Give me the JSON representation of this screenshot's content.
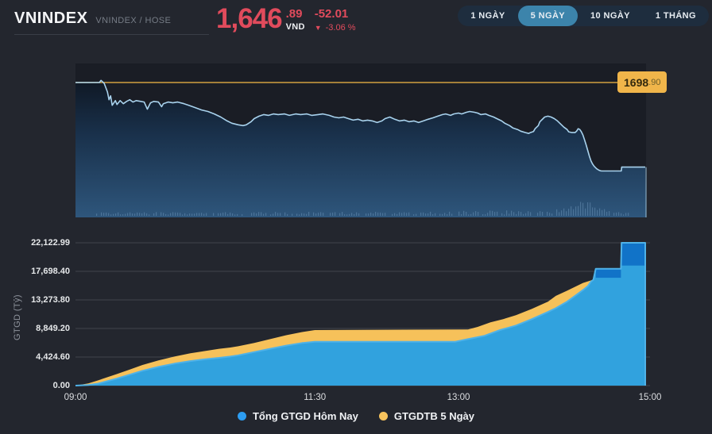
{
  "header": {
    "symbol": "VNINDEX",
    "exchange_label": "VNINDEX / HOSE",
    "price_main": "1,646",
    "price_decimals": ".89",
    "currency": "VND",
    "change": "-52.01",
    "change_arrow": "▼",
    "change_percent": "-3.06 %"
  },
  "tabs": [
    {
      "label": "1 NGÀY",
      "active": false
    },
    {
      "label": "5 NGÀY",
      "active": true
    },
    {
      "label": "10 NGÀY",
      "active": false
    },
    {
      "label": "1 THÁNG",
      "active": false
    }
  ],
  "reference_label": {
    "main": "1698",
    "decimals": ".90",
    "value": 1698.9
  },
  "legend": [
    {
      "label": "Tổng GTGD Hôm Nay",
      "color": "#2d9df2"
    },
    {
      "label": "GTGDTB 5 Ngày",
      "color": "#f7c35d"
    }
  ],
  "colors": {
    "page_bg": "#23262e",
    "plot_bg": "#1a1d25",
    "accent_red": "#e14b5c",
    "tab_bar_bg": "#1e2d3e",
    "tab_active_bg": "#3c84ab",
    "reference_yellow_line": "#d2a040",
    "reference_label_bg": "#f0b54a",
    "price_line": "#a8d2ed",
    "area_gradient_top": "#0c1018",
    "area_gradient_mid": "#19304a",
    "area_gradient_bottom": "#2e567c",
    "volume_tick": "#7fa8cc",
    "turnover_blue": "#31a2de",
    "turnover_blue_stroke": "#4fb2e8",
    "turnover_blue_dark": "#1173c8",
    "five_day_yellow": "#f6c15a",
    "grid": "#40444c"
  },
  "chart_data": [
    {
      "type": "line",
      "name": "vnindex-intraday-price",
      "x_unit": "minutes from 09:00",
      "x_range": [
        0,
        360
      ],
      "reference_line": {
        "value": 1698.9,
        "label": "1698.90"
      },
      "open_value": 1698.9,
      "last_value": 1646.89,
      "has_volume_ticks": true,
      "points": [
        [
          0,
          1698.9
        ],
        [
          15,
          1698.9
        ],
        [
          16,
          1700.2
        ],
        [
          18,
          1698.4
        ],
        [
          20,
          1693.1
        ],
        [
          21,
          1688.3
        ],
        [
          22,
          1690.7
        ],
        [
          23,
          1684.9
        ],
        [
          25,
          1687.8
        ],
        [
          26,
          1685.4
        ],
        [
          28,
          1687.8
        ],
        [
          30,
          1685.9
        ],
        [
          32,
          1687.3
        ],
        [
          34,
          1688.3
        ],
        [
          36,
          1686.9
        ],
        [
          38,
          1687.8
        ],
        [
          41,
          1687.3
        ],
        [
          43,
          1686.9
        ],
        [
          45,
          1682.5
        ],
        [
          47,
          1686.4
        ],
        [
          49,
          1687.3
        ],
        [
          52,
          1686.9
        ],
        [
          54,
          1684.0
        ],
        [
          55,
          1685.9
        ],
        [
          58,
          1686.9
        ],
        [
          61,
          1686.4
        ],
        [
          64,
          1686.9
        ],
        [
          68,
          1685.9
        ],
        [
          71,
          1684.9
        ],
        [
          75,
          1683.5
        ],
        [
          79,
          1682.0
        ],
        [
          83,
          1681.1
        ],
        [
          87,
          1679.6
        ],
        [
          91,
          1677.7
        ],
        [
          95,
          1675.3
        ],
        [
          98,
          1673.9
        ],
        [
          102,
          1672.9
        ],
        [
          105,
          1672.4
        ],
        [
          107,
          1672.9
        ],
        [
          110,
          1674.8
        ],
        [
          112,
          1676.7
        ],
        [
          115,
          1678.2
        ],
        [
          118,
          1679.2
        ],
        [
          121,
          1678.7
        ],
        [
          124,
          1679.6
        ],
        [
          127,
          1679.2
        ],
        [
          131,
          1679.6
        ],
        [
          134,
          1678.7
        ],
        [
          138,
          1679.6
        ],
        [
          141,
          1679.2
        ],
        [
          145,
          1679.6
        ],
        [
          148,
          1678.7
        ],
        [
          152,
          1679.2
        ],
        [
          155,
          1679.6
        ],
        [
          159,
          1678.7
        ],
        [
          162,
          1677.7
        ],
        [
          165,
          1677.2
        ],
        [
          168,
          1677.7
        ],
        [
          171,
          1676.7
        ],
        [
          174,
          1675.8
        ],
        [
          177,
          1676.3
        ],
        [
          180,
          1675.3
        ],
        [
          183,
          1675.8
        ],
        [
          186,
          1675.3
        ],
        [
          189,
          1674.3
        ],
        [
          192,
          1675.3
        ],
        [
          194,
          1676.7
        ],
        [
          197,
          1677.7
        ],
        [
          200,
          1676.3
        ],
        [
          203,
          1675.3
        ],
        [
          206,
          1675.8
        ],
        [
          209,
          1674.8
        ],
        [
          212,
          1675.3
        ],
        [
          215,
          1674.3
        ],
        [
          218,
          1675.3
        ],
        [
          221,
          1676.3
        ],
        [
          224,
          1677.2
        ],
        [
          227,
          1678.2
        ],
        [
          230,
          1679.2
        ],
        [
          232,
          1679.6
        ],
        [
          235,
          1678.7
        ],
        [
          237,
          1679.6
        ],
        [
          240,
          1680.1
        ],
        [
          242,
          1679.6
        ],
        [
          245,
          1680.6
        ],
        [
          247,
          1681.1
        ],
        [
          250,
          1680.6
        ],
        [
          252,
          1680.1
        ],
        [
          254,
          1679.2
        ],
        [
          257,
          1679.6
        ],
        [
          259,
          1678.7
        ],
        [
          262,
          1677.7
        ],
        [
          264,
          1676.7
        ],
        [
          267,
          1675.3
        ],
        [
          269,
          1673.9
        ],
        [
          272,
          1672.4
        ],
        [
          274,
          1671.0
        ],
        [
          277,
          1670.0
        ],
        [
          279,
          1669.0
        ],
        [
          282,
          1668.1
        ],
        [
          284,
          1667.6
        ],
        [
          285,
          1668.1
        ],
        [
          287,
          1668.8
        ],
        [
          288,
          1670.5
        ],
        [
          290,
          1672.4
        ],
        [
          291,
          1674.8
        ],
        [
          293,
          1676.7
        ],
        [
          294,
          1677.7
        ],
        [
          296,
          1678.2
        ],
        [
          298,
          1677.7
        ],
        [
          300,
          1676.7
        ],
        [
          302,
          1675.3
        ],
        [
          304,
          1673.4
        ],
        [
          306,
          1671.5
        ],
        [
          308,
          1670.0
        ],
        [
          309,
          1668.6
        ],
        [
          311,
          1668.1
        ],
        [
          313,
          1668.1
        ],
        [
          314,
          1669.0
        ],
        [
          315,
          1670.5
        ],
        [
          316,
          1670.0
        ],
        [
          317,
          1668.6
        ],
        [
          318,
          1666.6
        ],
        [
          319,
          1663.7
        ],
        [
          320,
          1660.4
        ],
        [
          321,
          1657.0
        ],
        [
          322,
          1653.6
        ],
        [
          323,
          1650.7
        ],
        [
          324,
          1648.8
        ],
        [
          325,
          1647.4
        ],
        [
          326.5,
          1645.9
        ],
        [
          328,
          1645.0
        ],
        [
          329,
          1644.6
        ],
        [
          330,
          1644.5
        ],
        [
          342,
          1644.5
        ],
        [
          342.3,
          1646.89
        ],
        [
          357,
          1646.89
        ]
      ]
    },
    {
      "type": "area",
      "name": "cumulative-turnover",
      "ylabel": "GTGD (Tỷ)",
      "ylim": [
        0,
        22122.99
      ],
      "yticks": [
        {
          "label": "22,122.99",
          "value": 22122.99
        },
        {
          "label": "17,698.40",
          "value": 17698.4
        },
        {
          "label": "13,273.80",
          "value": 13273.8
        },
        {
          "label": "8,849.20",
          "value": 8849.2
        },
        {
          "label": "4,424.60",
          "value": 4424.6
        },
        {
          "label": "0.00",
          "value": 0
        }
      ],
      "xticks": [
        {
          "label": "09:00",
          "minute": 0
        },
        {
          "label": "11:30",
          "minute": 150
        },
        {
          "label": "13:00",
          "minute": 240
        },
        {
          "label": "15:00",
          "minute": 360
        }
      ],
      "grid": true,
      "legend_position": "bottom-center",
      "series": [
        {
          "name": "GTGDTB 5 Ngày",
          "points": [
            [
              0,
              0
            ],
            [
              8,
              350
            ],
            [
              14,
              800
            ],
            [
              20,
              1300
            ],
            [
              26,
              1800
            ],
            [
              34,
              2500
            ],
            [
              42,
              3200
            ],
            [
              52,
              3900
            ],
            [
              62,
              4500
            ],
            [
              72,
              5000
            ],
            [
              82,
              5400
            ],
            [
              90,
              5700
            ],
            [
              97,
              5900
            ],
            [
              102,
              6100
            ],
            [
              112,
              6600
            ],
            [
              122,
              7200
            ],
            [
              132,
              7800
            ],
            [
              142,
              8300
            ],
            [
              150,
              8600
            ],
            [
              246,
              8700
            ],
            [
              252,
              9100
            ],
            [
              260,
              9800
            ],
            [
              268,
              10300
            ],
            [
              276,
              10900
            ],
            [
              286,
              11900
            ],
            [
              296,
              13000
            ],
            [
              301,
              13900
            ],
            [
              308,
              14700
            ],
            [
              313,
              15300
            ],
            [
              318,
              15900
            ],
            [
              323,
              16300
            ],
            [
              326,
              16600
            ],
            [
              341,
              16700
            ],
            [
              357,
              16800
            ]
          ]
        },
        {
          "name": "Tổng GTGD Hôm Nay",
          "points": [
            [
              0,
              0
            ],
            [
              8,
              80
            ],
            [
              14,
              300
            ],
            [
              20,
              700
            ],
            [
              26,
              1100
            ],
            [
              34,
              1700
            ],
            [
              42,
              2300
            ],
            [
              52,
              2900
            ],
            [
              62,
              3400
            ],
            [
              72,
              3800
            ],
            [
              82,
              4100
            ],
            [
              90,
              4300
            ],
            [
              97,
              4500
            ],
            [
              102,
              4700
            ],
            [
              112,
              5200
            ],
            [
              122,
              5700
            ],
            [
              132,
              6200
            ],
            [
              142,
              6600
            ],
            [
              150,
              6800
            ],
            [
              238,
              6800
            ],
            [
              246,
              7200
            ],
            [
              256,
              7700
            ],
            [
              266,
              8600
            ],
            [
              276,
              9300
            ],
            [
              286,
              10300
            ],
            [
              296,
              11400
            ],
            [
              301,
              12000
            ],
            [
              308,
              13000
            ],
            [
              313,
              13900
            ],
            [
              318,
              14800
            ],
            [
              321,
              15400
            ],
            [
              323,
              16100
            ],
            [
              324.5,
              16400
            ],
            [
              326,
              18100
            ],
            [
              341.8,
              18100
            ],
            [
              342.2,
              22122.99
            ],
            [
              357,
              22122.99
            ]
          ]
        }
      ],
      "highlight_segments": [
        {
          "from_minute": 326,
          "to_minute": 341.8,
          "value_from": 16700,
          "value_to": 18100
        },
        {
          "from_minute": 341.8,
          "to_minute": 357,
          "value_from": 18600,
          "value_to": 22122.99
        }
      ]
    }
  ]
}
